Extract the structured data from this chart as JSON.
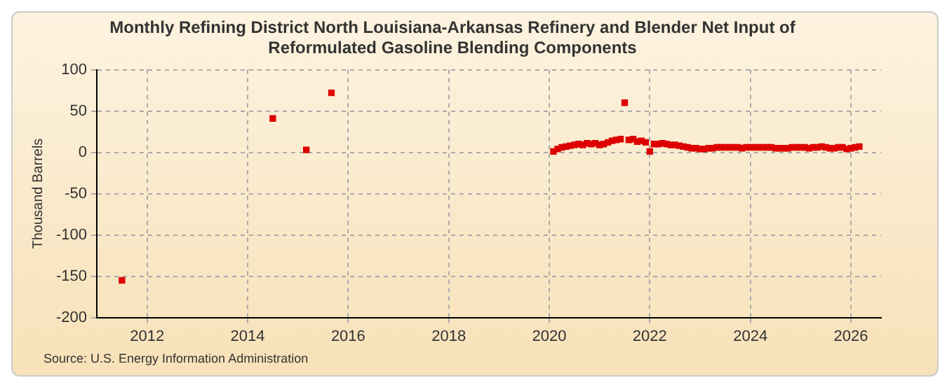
{
  "chart_data": {
    "type": "scatter",
    "title": "Monthly Refining District North Louisiana-Arkansas Refinery and Blender Net Input of Reformulated Gasoline Blending Components",
    "ylabel": "Thousand Barrels",
    "annotations": [
      "Source: U.S. Energy Information Administration"
    ],
    "x": [
      2011.5,
      2014.5,
      2015.167,
      2015.667,
      2020.083,
      2020.167,
      2020.25,
      2020.333,
      2020.417,
      2020.5,
      2020.583,
      2020.667,
      2020.75,
      2020.833,
      2020.917,
      2021.0,
      2021.083,
      2021.167,
      2021.25,
      2021.333,
      2021.417,
      2021.5,
      2021.583,
      2021.667,
      2021.75,
      2021.833,
      2021.917,
      2022.0,
      2022.083,
      2022.167,
      2022.25,
      2022.333,
      2022.417,
      2022.5,
      2022.583,
      2022.667,
      2022.75,
      2022.833,
      2022.917,
      2023.0,
      2023.083,
      2023.167,
      2023.25,
      2023.333,
      2023.417,
      2023.5,
      2023.583,
      2023.667,
      2023.75,
      2023.833,
      2023.917,
      2024.0,
      2024.083,
      2024.167,
      2024.25,
      2024.333,
      2024.417,
      2024.5,
      2024.583,
      2024.667,
      2024.75,
      2024.833,
      2024.917,
      2025.0,
      2025.083,
      2025.167,
      2025.25,
      2025.333,
      2025.417,
      2025.5,
      2025.583,
      2025.667,
      2025.75,
      2025.833,
      2025.917,
      2026.0,
      2026.083,
      2026.167
    ],
    "series": [
      {
        "color": "#dd0000",
        "values": [
          -155,
          41,
          3,
          72,
          1,
          4,
          6,
          7,
          8,
          9,
          10,
          9,
          11,
          10,
          11,
          9,
          10,
          12,
          14,
          15,
          16,
          60,
          15,
          16,
          13,
          14,
          12,
          1,
          10,
          10,
          11,
          10,
          9,
          9,
          8,
          7,
          6,
          5,
          5,
          4,
          4,
          5,
          5,
          6,
          6,
          6,
          6,
          6,
          6,
          5,
          6,
          6,
          6,
          6,
          6,
          6,
          6,
          5,
          5,
          5,
          5,
          6,
          6,
          6,
          6,
          5,
          6,
          6,
          7,
          6,
          5,
          5,
          6,
          6,
          4,
          5,
          6,
          7
        ]
      }
    ],
    "xlim": [
      2011,
      2026.6
    ],
    "xticks": [
      2012,
      2014,
      2016,
      2018,
      2020,
      2022,
      2024,
      2026
    ],
    "ylim": [
      -200,
      100
    ],
    "yticks": [
      -200,
      -150,
      -100,
      -50,
      0,
      50,
      100
    ],
    "grid": true,
    "legend": false,
    "marker": "square"
  }
}
